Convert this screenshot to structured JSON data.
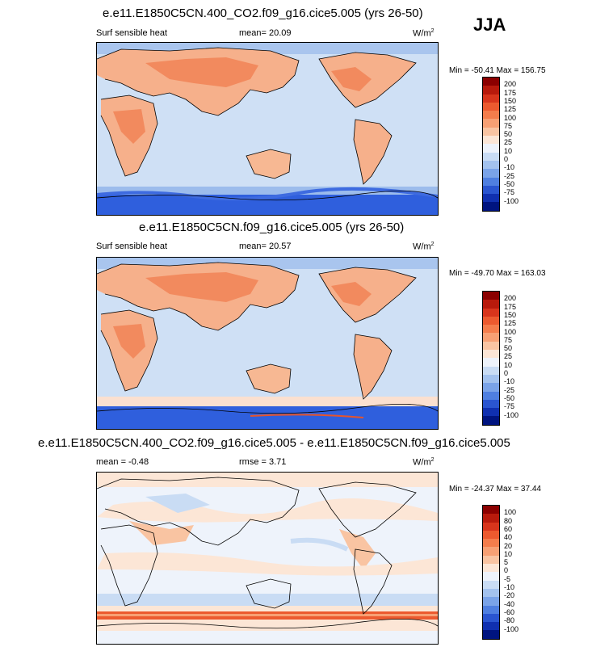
{
  "season": "JJA",
  "panels": [
    {
      "title": "e.e11.E1850C5CN.400_CO2.f09_g16.cice5.005 (yrs 26-50)",
      "left": "Surf sensible heat",
      "mean": "mean=  20.09",
      "units": "W/m",
      "units_sup": "2",
      "minmax": "Min = -50.41 Max = 156.75",
      "levels": [
        "200",
        "175",
        "150",
        "125",
        "100",
        "75",
        "50",
        "25",
        "10",
        "0",
        "-10",
        "-25",
        "-50",
        "-75",
        "-100"
      ],
      "colors": [
        "#8b0000",
        "#b81a0c",
        "#d8351c",
        "#ec5a2f",
        "#f47d4c",
        "#f7a074",
        "#f9c4a2",
        "#fce6d6",
        "#eef3fb",
        "#c9dcf4",
        "#a3c2ee",
        "#7aa3e8",
        "#4f7fe0",
        "#2a55d0",
        "#1030b0",
        "#001480"
      ]
    },
    {
      "title": "e.e11.E1850C5CN.f09_g16.cice5.005 (yrs 26-50)",
      "left": "Surf sensible heat",
      "mean": "mean=  20.57",
      "units": "W/m",
      "units_sup": "2",
      "minmax": "Min = -49.70 Max = 163.03",
      "levels": [
        "200",
        "175",
        "150",
        "125",
        "100",
        "75",
        "50",
        "25",
        "10",
        "0",
        "-10",
        "-25",
        "-50",
        "-75",
        "-100"
      ],
      "colors": [
        "#8b0000",
        "#b81a0c",
        "#d8351c",
        "#ec5a2f",
        "#f47d4c",
        "#f7a074",
        "#f9c4a2",
        "#fce6d6",
        "#eef3fb",
        "#c9dcf4",
        "#a3c2ee",
        "#7aa3e8",
        "#4f7fe0",
        "#2a55d0",
        "#1030b0",
        "#001480"
      ]
    },
    {
      "title": "e.e11.E1850C5CN.400_CO2.f09_g16.cice5.005 - e.e11.E1850C5CN.f09_g16.cice5.005",
      "left": "mean =  -0.48",
      "mean": "rmse =   3.71",
      "units": "W/m",
      "units_sup": "2",
      "minmax": "Min = -24.37 Max = 37.44",
      "levels": [
        "100",
        "80",
        "60",
        "40",
        "20",
        "10",
        "5",
        "0",
        "-5",
        "-10",
        "-20",
        "-40",
        "-60",
        "-80",
        "-100"
      ],
      "colors": [
        "#8b0000",
        "#b81a0c",
        "#d8351c",
        "#ec5a2f",
        "#f47d4c",
        "#f7a074",
        "#f9c4a2",
        "#fce6d6",
        "#eef3fb",
        "#c9dcf4",
        "#a3c2ee",
        "#7aa3e8",
        "#4f7fe0",
        "#2a55d0",
        "#1030b0",
        "#001480"
      ]
    }
  ]
}
